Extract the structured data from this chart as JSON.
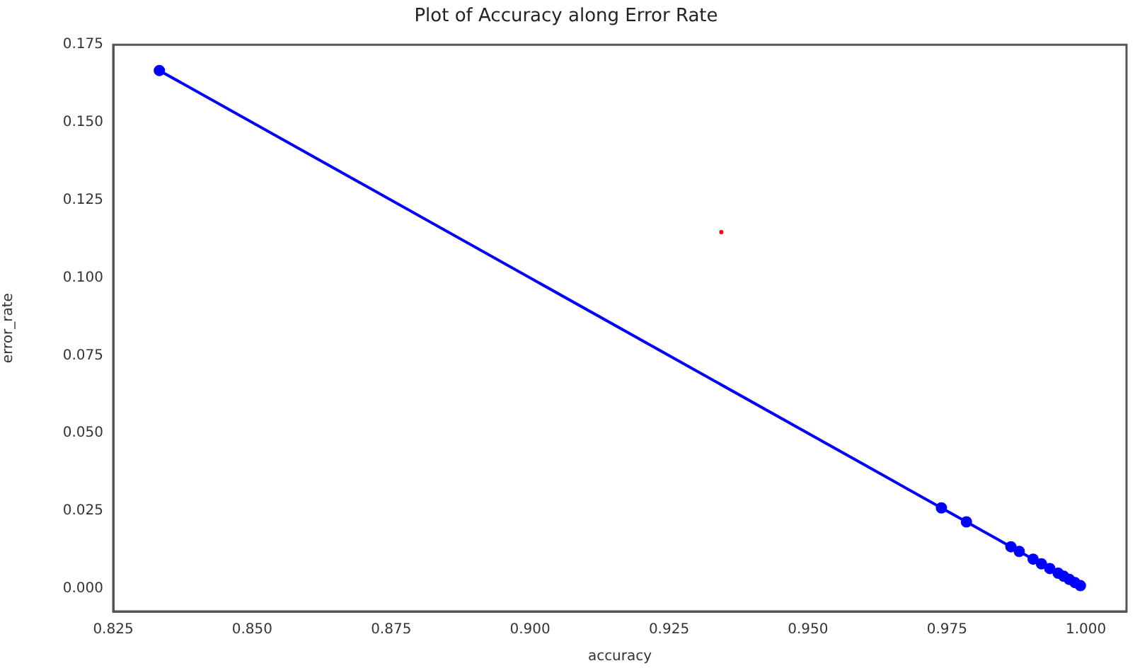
{
  "chart_data": {
    "type": "line",
    "title": "Plot of Accuracy along Error Rate",
    "xlabel": "accuracy",
    "ylabel": "error_rate",
    "xlim": [
      0.825,
      1.0073
    ],
    "ylim": [
      -0.0073,
      0.175
    ],
    "xticks": [
      0.825,
      {
        "value": 0.85,
        "label": "0.850"
      },
      0.875,
      {
        "value": 0.9,
        "label": "0.900"
      },
      0.925,
      {
        "value": 0.95,
        "label": "0.950"
      },
      0.975,
      {
        "value": 1,
        "label": "1.000"
      }
    ],
    "yticks": [
      {
        "value": 0,
        "label": "0.000"
      },
      0.025,
      {
        "value": 0.05,
        "label": "0.050"
      },
      0.075,
      {
        "value": 0.1,
        "label": "0.100"
      },
      0.125,
      {
        "value": 0.15,
        "label": "0.150"
      },
      0.175
    ],
    "grid": false,
    "legend": false,
    "marker": "circle",
    "line_style": "solid",
    "series": [
      {
        "type": "line",
        "color": "#0000ff",
        "x": [
          0.8333,
          0.974,
          0.9785,
          0.9865,
          0.988,
          0.9905,
          0.992,
          0.9935,
          0.995,
          0.996,
          0.997,
          0.998,
          0.999
        ],
        "values": [
          0.1667,
          0.026,
          0.0215,
          0.0135,
          0.012,
          0.0095,
          0.008,
          0.0065,
          0.005,
          0.004,
          0.003,
          0.002,
          0.001
        ]
      },
      {
        "type": "scatter",
        "color": "#ff0000",
        "x": [
          0.9344
        ],
        "values": [
          0.1147
        ]
      }
    ]
  }
}
